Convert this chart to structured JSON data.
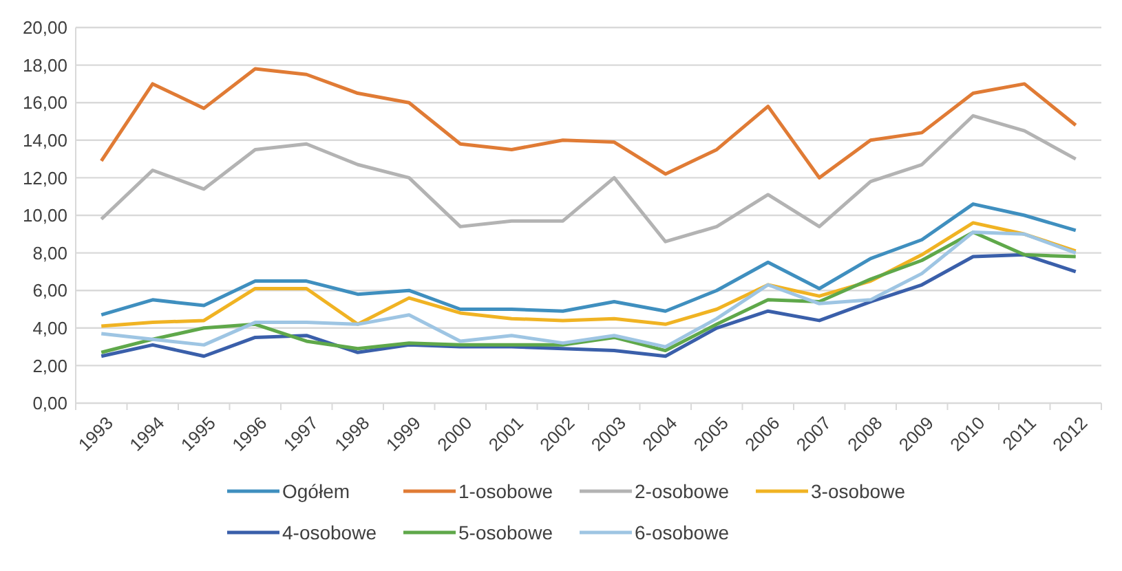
{
  "chart_data": {
    "type": "line",
    "categories": [
      "1993",
      "1994",
      "1995",
      "1996",
      "1997",
      "1998",
      "1999",
      "2000",
      "2001",
      "2002",
      "2003",
      "2004",
      "2005",
      "2006",
      "2007",
      "2008",
      "2009",
      "2010",
      "2011",
      "2012"
    ],
    "series": [
      {
        "name": "Ogółem",
        "color": "#3f8fbf",
        "values": [
          4.7,
          5.5,
          5.2,
          6.5,
          6.5,
          5.8,
          6.0,
          5.0,
          5.0,
          4.9,
          5.4,
          4.9,
          6.0,
          7.5,
          6.1,
          7.7,
          8.7,
          10.6,
          10.0,
          9.2
        ]
      },
      {
        "name": "1-osobowe",
        "color": "#e07b35",
        "values": [
          12.9,
          17.0,
          15.7,
          17.8,
          17.5,
          16.5,
          16.0,
          13.8,
          13.5,
          14.0,
          13.9,
          12.2,
          13.5,
          15.8,
          12.0,
          14.0,
          14.4,
          16.5,
          17.0,
          14.8
        ]
      },
      {
        "name": "2-osobowe",
        "color": "#b3b3b3",
        "values": [
          9.8,
          12.4,
          11.4,
          13.5,
          13.8,
          12.7,
          12.0,
          9.4,
          9.7,
          9.7,
          12.0,
          8.6,
          9.4,
          11.1,
          9.4,
          11.8,
          12.7,
          15.3,
          14.5,
          13.0
        ]
      },
      {
        "name": "3-osobowe",
        "color": "#f0b323",
        "values": [
          4.1,
          4.3,
          4.4,
          6.1,
          6.1,
          4.2,
          5.6,
          4.8,
          4.5,
          4.4,
          4.5,
          4.2,
          5.0,
          6.3,
          5.7,
          6.5,
          7.9,
          9.6,
          9.0,
          8.1
        ]
      },
      {
        "name": "4-osobowe",
        "color": "#3a5faa",
        "values": [
          2.5,
          3.1,
          2.5,
          3.5,
          3.6,
          2.7,
          3.1,
          3.0,
          3.0,
          2.9,
          2.8,
          2.5,
          4.0,
          4.9,
          4.4,
          5.4,
          6.3,
          7.8,
          7.9,
          7.0
        ]
      },
      {
        "name": "5-osobowe",
        "color": "#5fa84a",
        "values": [
          2.7,
          3.4,
          4.0,
          4.2,
          3.3,
          2.9,
          3.2,
          3.1,
          3.1,
          3.1,
          3.5,
          2.8,
          4.2,
          5.5,
          5.4,
          6.6,
          7.6,
          9.1,
          7.9,
          7.8
        ]
      },
      {
        "name": "6-osobowe",
        "color": "#9ec5e3",
        "values": [
          3.7,
          3.4,
          3.1,
          4.3,
          4.3,
          4.2,
          4.7,
          3.3,
          3.6,
          3.2,
          3.6,
          3.0,
          4.5,
          6.3,
          5.3,
          5.5,
          6.9,
          9.1,
          9.0,
          8.0
        ]
      }
    ],
    "ylim": [
      0,
      20
    ],
    "yticks": [
      {
        "value": 0,
        "label": "0,00"
      },
      {
        "value": 2,
        "label": "2,00"
      },
      {
        "value": 4,
        "label": "4,00"
      },
      {
        "value": 6,
        "label": "6,00"
      },
      {
        "value": 8,
        "label": "8,00"
      },
      {
        "value": 10,
        "label": "10,00"
      },
      {
        "value": 12,
        "label": "12,00"
      },
      {
        "value": 14,
        "label": "14,00"
      },
      {
        "value": 16,
        "label": "16,00"
      },
      {
        "value": 18,
        "label": "18,00"
      },
      {
        "value": 20,
        "label": "20,00"
      }
    ],
    "grid": "y",
    "legend": "bottom",
    "marker": "none",
    "line_style": "solid"
  }
}
